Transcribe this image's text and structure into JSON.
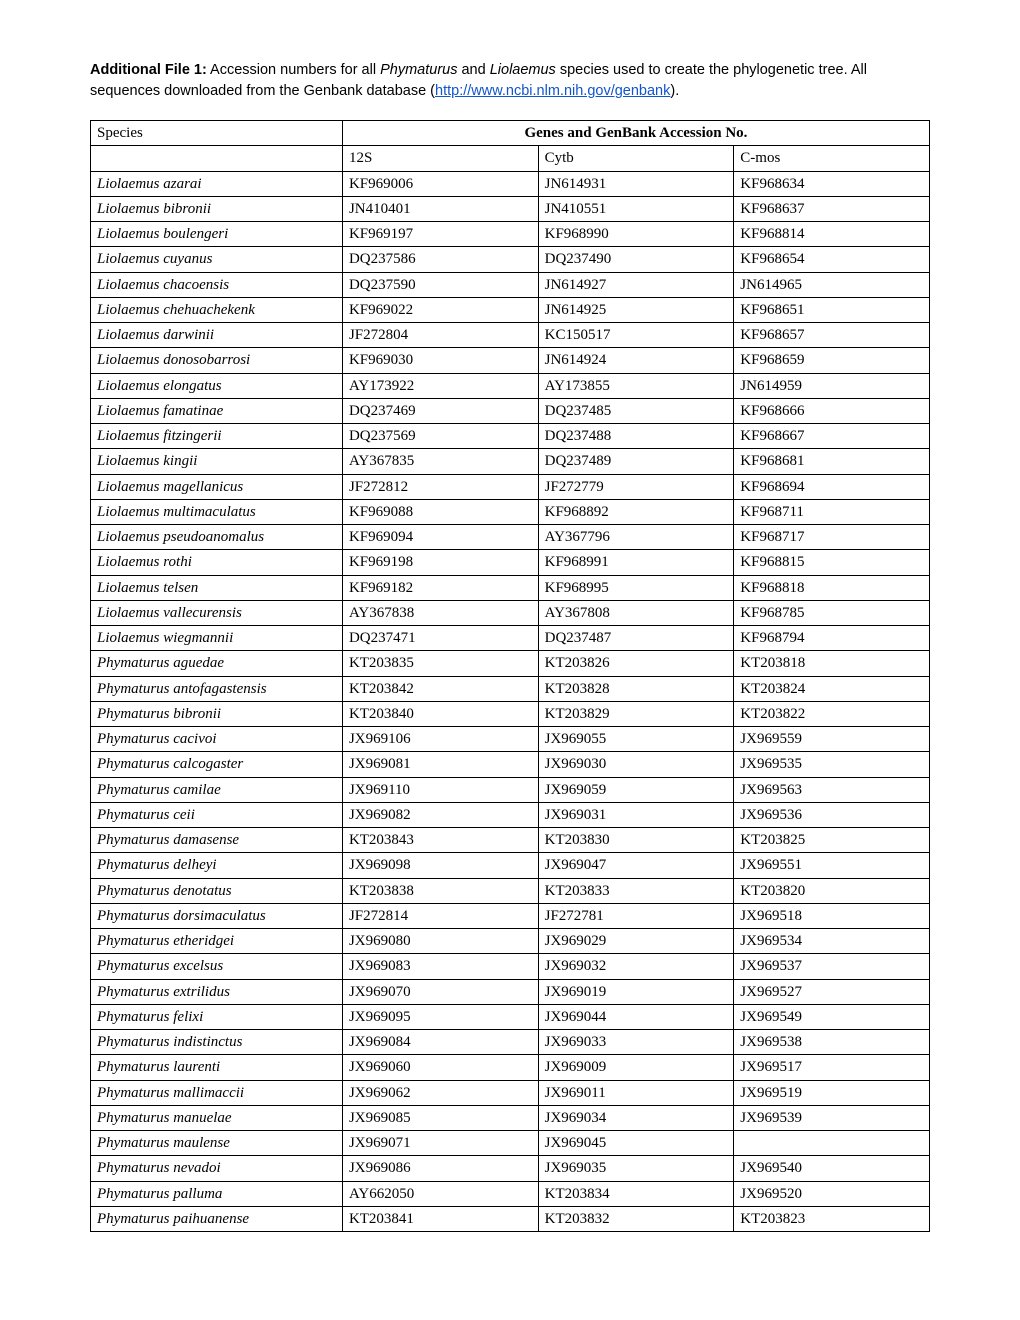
{
  "intro": {
    "label": "Additional File 1:",
    "text_before": " Accession numbers for all ",
    "italic1": "Phymaturus",
    "text_mid1": " and ",
    "italic2": "Liolaemus",
    "text_mid2": " species used to create the phylogenetic tree. All sequences downloaded from the Genbank database (",
    "link": "http://www.ncbi.nlm.nih.gov/genbank",
    "text_after": ")."
  },
  "headers": {
    "species": "Species",
    "genes": "Genes and GenBank Accession No.",
    "col_12s": "12S",
    "col_cytb": "Cytb",
    "col_cmos": "C-mos"
  },
  "rows": [
    {
      "sp": "Liolaemus azarai",
      "a": "KF969006",
      "b": "JN614931",
      "c": "KF968634"
    },
    {
      "sp": "Liolaemus bibronii",
      "a": "JN410401",
      "b": "JN410551",
      "c": "KF968637"
    },
    {
      "sp": "Liolaemus boulengeri",
      "a": "KF969197",
      "b": "KF968990",
      "c": "KF968814"
    },
    {
      "sp": "Liolaemus cuyanus",
      "a": "DQ237586",
      "b": "DQ237490",
      "c": "KF968654"
    },
    {
      "sp": "Liolaemus chacoensis",
      "a": "DQ237590",
      "b": "JN614927",
      "c": "JN614965"
    },
    {
      "sp": "Liolaemus chehuachekenk",
      "a": "KF969022",
      "b": "JN614925",
      "c": "KF968651"
    },
    {
      "sp": "Liolaemus darwinii",
      "a": "JF272804",
      "b": "KC150517",
      "c": "KF968657"
    },
    {
      "sp": "Liolaemus donosobarrosi",
      "a": "KF969030",
      "b": "JN614924",
      "c": "KF968659"
    },
    {
      "sp": "Liolaemus elongatus",
      "a": "AY173922",
      "b": "AY173855",
      "c": "JN614959"
    },
    {
      "sp": "Liolaemus famatinae",
      "a": "DQ237469",
      "b": "DQ237485",
      "c": "KF968666"
    },
    {
      "sp": "Liolaemus fitzingerii",
      "a": "DQ237569",
      "b": "DQ237488",
      "c": "KF968667"
    },
    {
      "sp": "Liolaemus kingii",
      "a": "AY367835",
      "b": "DQ237489",
      "c": "KF968681"
    },
    {
      "sp": "Liolaemus magellanicus",
      "a": "JF272812",
      "b": "JF272779",
      "c": "KF968694"
    },
    {
      "sp": "Liolaemus multimaculatus",
      "a": "KF969088",
      "b": "KF968892",
      "c": "KF968711"
    },
    {
      "sp": "Liolaemus pseudoanomalus",
      "a": "KF969094",
      "b": "AY367796",
      "c": "KF968717"
    },
    {
      "sp": "Liolaemus rothi",
      "a": "KF969198",
      "b": "KF968991",
      "c": "KF968815"
    },
    {
      "sp": "Liolaemus telsen",
      "a": "KF969182",
      "b": "KF968995",
      "c": "KF968818"
    },
    {
      "sp": "Liolaemus vallecurensis",
      "a": "AY367838",
      "b": "AY367808",
      "c": "KF968785"
    },
    {
      "sp": "Liolaemus wiegmannii",
      "a": "DQ237471",
      "b": "DQ237487",
      "c": "KF968794"
    },
    {
      "sp": "Phymaturus aguedae",
      "a": "KT203835",
      "b": "KT203826",
      "c": "KT203818"
    },
    {
      "sp": "Phymaturus antofagastensis",
      "a": "KT203842",
      "b": "KT203828",
      "c": "KT203824"
    },
    {
      "sp": "Phymaturus bibronii",
      "a": "KT203840",
      "b": "KT203829",
      "c": "KT203822"
    },
    {
      "sp": "Phymaturus cacivoi",
      "a": "JX969106",
      "b": "JX969055",
      "c": "JX969559"
    },
    {
      "sp": "Phymaturus calcogaster",
      "a": "JX969081",
      "b": "JX969030",
      "c": "JX969535"
    },
    {
      "sp": "Phymaturus camilae",
      "a": "JX969110",
      "b": "JX969059",
      "c": "JX969563"
    },
    {
      "sp": "Phymaturus ceii",
      "a": "JX969082",
      "b": "JX969031",
      "c": "JX969536"
    },
    {
      "sp": "Phymaturus damasense",
      "a": "KT203843",
      "b": "KT203830",
      "c": "KT203825"
    },
    {
      "sp": "Phymaturus delheyi",
      "a": "JX969098",
      "b": "JX969047",
      "c": "JX969551"
    },
    {
      "sp": "Phymaturus denotatus",
      "a": "KT203838",
      "b": "KT203833",
      "c": "KT203820"
    },
    {
      "sp": "Phymaturus dorsimaculatus",
      "a": "JF272814",
      "b": "JF272781",
      "c": "JX969518"
    },
    {
      "sp": "Phymaturus etheridgei",
      "a": "JX969080",
      "b": "JX969029",
      "c": "JX969534"
    },
    {
      "sp": "Phymaturus excelsus",
      "a": "JX969083",
      "b": "JX969032",
      "c": "JX969537"
    },
    {
      "sp": "Phymaturus extrilidus",
      "a": "JX969070",
      "b": "JX969019",
      "c": "JX969527"
    },
    {
      "sp": "Phymaturus felixi",
      "a": "JX969095",
      "b": "JX969044",
      "c": "JX969549"
    },
    {
      "sp": "Phymaturus indistinctus",
      "a": "JX969084",
      "b": "JX969033",
      "c": "JX969538"
    },
    {
      "sp": "Phymaturus laurenti",
      "a": "JX969060",
      "b": "JX969009",
      "c": "JX969517"
    },
    {
      "sp": "Phymaturus mallimaccii",
      "a": "JX969062",
      "b": "JX969011",
      "c": "JX969519"
    },
    {
      "sp": "Phymaturus manuelae",
      "a": "JX969085",
      "b": "JX969034",
      "c": "JX969539"
    },
    {
      "sp": "Phymaturus maulense",
      "a": "JX969071",
      "b": "JX969045",
      "c": ""
    },
    {
      "sp": "Phymaturus nevadoi",
      "a": "JX969086",
      "b": "JX969035",
      "c": "JX969540"
    },
    {
      "sp": "Phymaturus palluma",
      "a": "AY662050",
      "b": "KT203834",
      "c": "JX969520"
    },
    {
      "sp": "Phymaturus paihuanense",
      "a": "KT203841",
      "b": "KT203832",
      "c": "KT203823"
    }
  ]
}
